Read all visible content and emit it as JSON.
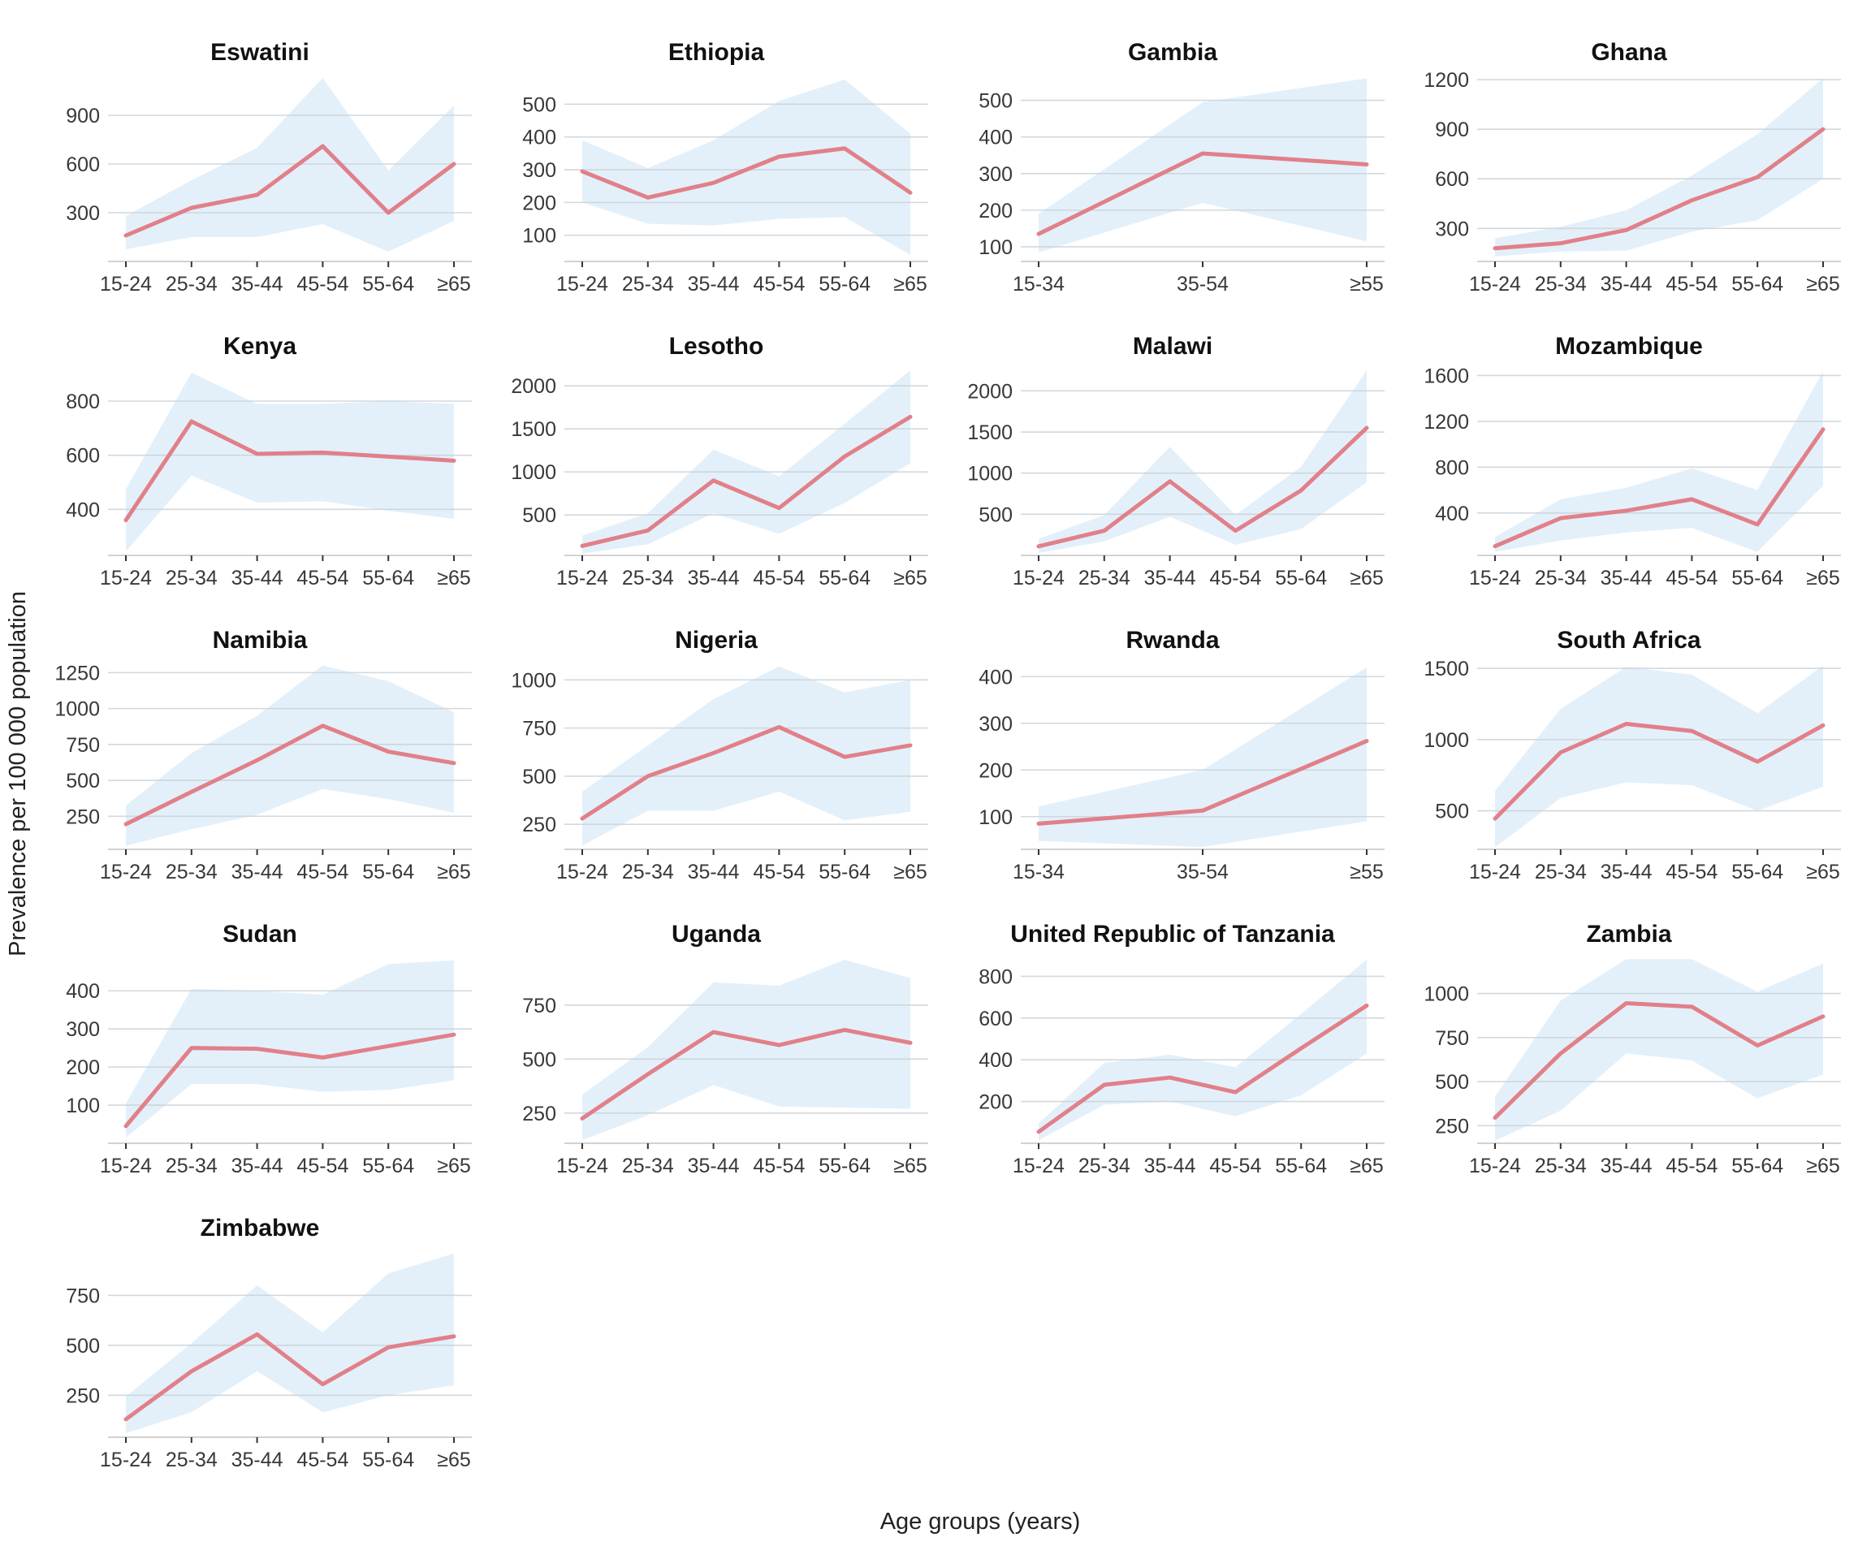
{
  "figure": {
    "ylabel": "Prevalence per 100 000 population",
    "xlabel": "Age groups (years)",
    "colors": {
      "line": "#E18089",
      "band": "#E3F0FA",
      "grid": "#CBD2D8",
      "axis": "#D2D2D2",
      "tickmark": "#333333",
      "ticktext": "#383838",
      "title": "#111111"
    }
  },
  "chart_data": [
    {
      "type": "line",
      "title": "Eswatini",
      "categories": [
        "15-24",
        "25-34",
        "35-44",
        "45-54",
        "55-64",
        "≥65"
      ],
      "values": [
        160,
        330,
        410,
        710,
        300,
        600
      ],
      "lower": [
        75,
        150,
        150,
        230,
        60,
        250
      ],
      "upper": [
        280,
        500,
        700,
        1130,
        560,
        960
      ],
      "yticks": [
        300,
        600,
        900
      ],
      "ylim": [
        0,
        1150
      ]
    },
    {
      "type": "line",
      "title": "Ethiopia",
      "categories": [
        "15-24",
        "25-34",
        "35-44",
        "45-54",
        "55-64",
        "≥65"
      ],
      "values": [
        295,
        215,
        260,
        340,
        365,
        230
      ],
      "lower": [
        200,
        135,
        130,
        150,
        155,
        40
      ],
      "upper": [
        390,
        305,
        390,
        510,
        575,
        410
      ],
      "yticks": [
        100,
        200,
        300,
        400,
        500
      ],
      "ylim": [
        20,
        590
      ]
    },
    {
      "type": "line",
      "title": "Gambia",
      "categories": [
        "15-34",
        "35-54",
        "≥55"
      ],
      "values": [
        135,
        355,
        325
      ],
      "lower": [
        85,
        220,
        115
      ],
      "upper": [
        190,
        495,
        560
      ],
      "yticks": [
        100,
        200,
        300,
        400,
        500
      ],
      "ylim": [
        60,
        570
      ]
    },
    {
      "type": "line",
      "title": "Ghana",
      "categories": [
        "15-24",
        "25-34",
        "35-44",
        "45-54",
        "55-64",
        "≥65"
      ],
      "values": [
        180,
        210,
        290,
        470,
        610,
        900
      ],
      "lower": [
        130,
        160,
        165,
        280,
        350,
        600
      ],
      "upper": [
        240,
        310,
        410,
        620,
        870,
        1210
      ],
      "yticks": [
        300,
        600,
        900,
        1200
      ],
      "ylim": [
        100,
        1230
      ]
    },
    {
      "type": "line",
      "title": "Kenya",
      "categories": [
        "15-24",
        "25-34",
        "35-44",
        "45-54",
        "55-64",
        "≥65"
      ],
      "values": [
        360,
        725,
        605,
        610,
        595,
        580
      ],
      "lower": [
        245,
        525,
        425,
        430,
        395,
        365
      ],
      "upper": [
        475,
        905,
        790,
        790,
        800,
        790
      ],
      "yticks": [
        400,
        600,
        800
      ],
      "ylim": [
        230,
        920
      ]
    },
    {
      "type": "line",
      "title": "Lesotho",
      "categories": [
        "15-24",
        "25-34",
        "35-44",
        "45-54",
        "55-64",
        "≥65"
      ],
      "values": [
        140,
        320,
        900,
        580,
        1180,
        1640
      ],
      "lower": [
        50,
        160,
        520,
        280,
        640,
        1100
      ],
      "upper": [
        260,
        520,
        1260,
        950,
        1560,
        2180
      ],
      "yticks": [
        500,
        1000,
        1500,
        2000
      ],
      "ylim": [
        30,
        2200
      ]
    },
    {
      "type": "line",
      "title": "Malawi",
      "categories": [
        "15-24",
        "25-34",
        "35-44",
        "45-54",
        "55-64",
        "≥65"
      ],
      "values": [
        110,
        300,
        900,
        300,
        790,
        1550
      ],
      "lower": [
        30,
        170,
        470,
        130,
        320,
        890
      ],
      "upper": [
        200,
        490,
        1320,
        490,
        1080,
        2250
      ],
      "yticks": [
        500,
        1000,
        1500,
        2000
      ],
      "ylim": [
        0,
        2270
      ]
    },
    {
      "type": "line",
      "title": "Mozambique",
      "categories": [
        "15-24",
        "25-34",
        "35-44",
        "45-54",
        "55-64",
        "≥65"
      ],
      "values": [
        110,
        355,
        420,
        520,
        300,
        1130
      ],
      "lower": [
        60,
        160,
        230,
        270,
        60,
        640
      ],
      "upper": [
        190,
        520,
        620,
        790,
        600,
        1640
      ],
      "yticks": [
        400,
        800,
        1200,
        1600
      ],
      "ylim": [
        30,
        1660
      ]
    },
    {
      "type": "line",
      "title": "Namibia",
      "categories": [
        "15-24",
        "25-34",
        "35-44",
        "45-54",
        "55-64",
        "≥65"
      ],
      "values": [
        195,
        420,
        640,
        880,
        700,
        620
      ],
      "lower": [
        45,
        160,
        260,
        440,
        370,
        275
      ],
      "upper": [
        325,
        690,
        950,
        1300,
        1190,
        975
      ],
      "yticks": [
        250,
        500,
        750,
        1000,
        1250
      ],
      "ylim": [
        20,
        1320
      ]
    },
    {
      "type": "line",
      "title": "Nigeria",
      "categories": [
        "15-24",
        "25-34",
        "35-44",
        "45-54",
        "55-64",
        "≥65"
      ],
      "values": [
        280,
        500,
        620,
        755,
        600,
        660
      ],
      "lower": [
        140,
        320,
        320,
        420,
        270,
        315
      ],
      "upper": [
        420,
        660,
        900,
        1070,
        935,
        1000
      ],
      "yticks": [
        250,
        500,
        750,
        1000
      ],
      "ylim": [
        120,
        1090
      ]
    },
    {
      "type": "line",
      "title": "Rwanda",
      "categories": [
        "15-34",
        "35-54",
        "≥55"
      ],
      "values": [
        85,
        113,
        262
      ],
      "lower": [
        48,
        35,
        90
      ],
      "upper": [
        122,
        200,
        420
      ],
      "yticks": [
        100,
        200,
        300,
        400
      ],
      "ylim": [
        30,
        430
      ]
    },
    {
      "type": "line",
      "title": "South Africa",
      "categories": [
        "15-24",
        "25-34",
        "35-44",
        "45-54",
        "55-64",
        "≥65"
      ],
      "values": [
        445,
        910,
        1110,
        1060,
        845,
        1100
      ],
      "lower": [
        245,
        590,
        700,
        680,
        500,
        670
      ],
      "upper": [
        640,
        1215,
        1510,
        1455,
        1185,
        1520
      ],
      "yticks": [
        500,
        1000,
        1500
      ],
      "ylim": [
        230,
        1540
      ]
    },
    {
      "type": "line",
      "title": "Sudan",
      "categories": [
        "15-24",
        "25-34",
        "35-44",
        "45-54",
        "55-64",
        "≥65"
      ],
      "values": [
        45,
        250,
        248,
        225,
        255,
        285
      ],
      "lower": [
        15,
        155,
        155,
        135,
        140,
        165
      ],
      "upper": [
        105,
        405,
        400,
        390,
        470,
        480
      ],
      "yticks": [
        100,
        200,
        300,
        400
      ],
      "ylim": [
        0,
        490
      ]
    },
    {
      "type": "line",
      "title": "Uganda",
      "categories": [
        "15-24",
        "25-34",
        "35-44",
        "45-54",
        "55-64",
        "≥65"
      ],
      "values": [
        225,
        430,
        625,
        565,
        635,
        575
      ],
      "lower": [
        125,
        240,
        380,
        280,
        275,
        270
      ],
      "upper": [
        335,
        555,
        855,
        840,
        960,
        875
      ],
      "yticks": [
        250,
        500,
        750
      ],
      "ylim": [
        110,
        975
      ]
    },
    {
      "type": "line",
      "title": "United Republic of Tanzania",
      "categories": [
        "15-24",
        "25-34",
        "35-44",
        "45-54",
        "55-64",
        "≥65"
      ],
      "values": [
        55,
        280,
        315,
        245,
        455,
        660
      ],
      "lower": [
        15,
        185,
        200,
        130,
        230,
        430
      ],
      "upper": [
        95,
        385,
        425,
        365,
        620,
        880
      ],
      "yticks": [
        200,
        400,
        600,
        800
      ],
      "ylim": [
        0,
        895
      ]
    },
    {
      "type": "line",
      "title": "Zambia",
      "categories": [
        "15-24",
        "25-34",
        "35-44",
        "45-54",
        "55-64",
        "≥65"
      ],
      "values": [
        295,
        660,
        945,
        925,
        705,
        870
      ],
      "lower": [
        165,
        335,
        660,
        620,
        405,
        540
      ],
      "upper": [
        415,
        960,
        1195,
        1195,
        1010,
        1170
      ],
      "yticks": [
        250,
        500,
        750,
        1000
      ],
      "ylim": [
        150,
        1210
      ]
    },
    {
      "type": "line",
      "title": "Zimbabwe",
      "categories": [
        "15-24",
        "25-34",
        "35-44",
        "45-54",
        "55-64",
        "≥65"
      ],
      "values": [
        130,
        370,
        555,
        305,
        490,
        545
      ],
      "lower": [
        60,
        165,
        370,
        165,
        250,
        300
      ],
      "upper": [
        245,
        510,
        800,
        565,
        860,
        960
      ],
      "yticks": [
        250,
        500,
        750
      ],
      "ylim": [
        40,
        975
      ]
    }
  ]
}
